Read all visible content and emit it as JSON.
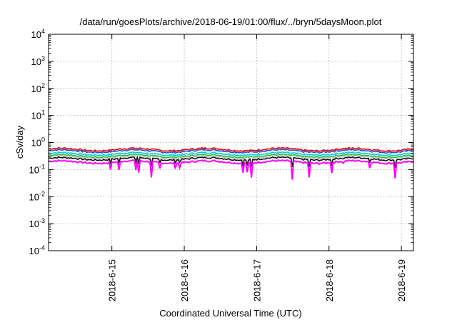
{
  "chart_data": {
    "type": "line",
    "title": "/data/run/goesPlots/archive/2018-06-19/01:00/flux/../bryn/5daysMoon.plot",
    "xlabel": "Coordinated Universal Time (UTC)",
    "ylabel": "cSv/day",
    "y_scale": "log",
    "ylim": [
      0.0001,
      10000
    ],
    "xlim": [
      "2018-06-14 03:00",
      "2018-06-19 04:00"
    ],
    "y_ticks": [
      {
        "base": "10",
        "exp": "-4"
      },
      {
        "base": "10",
        "exp": "-3"
      },
      {
        "base": "10",
        "exp": "-2"
      },
      {
        "base": "10",
        "exp": "-1"
      },
      {
        "base": "10",
        "exp": "0"
      },
      {
        "base": "10",
        "exp": "1"
      },
      {
        "base": "10",
        "exp": "2"
      },
      {
        "base": "10",
        "exp": "3"
      },
      {
        "base": "10",
        "exp": "4"
      }
    ],
    "x_ticks": [
      "2018-6-15",
      "2018-6-16",
      "2018-6-17",
      "2018-6-18",
      "2018-6-19"
    ],
    "grid": true,
    "legend": "none",
    "series": [
      {
        "color": "#ff0000",
        "level": 0.55
      },
      {
        "color": "#2050d8",
        "level": 0.48
      },
      {
        "color": "#00c8e0",
        "level": 0.38
      },
      {
        "color": "#20c030",
        "level": 0.32
      },
      {
        "color": "#c8c8c8",
        "level": 0.29
      },
      {
        "color": "#101010",
        "level": 0.25
      },
      {
        "color": "#ff00ff",
        "level": 0.19
      }
    ]
  }
}
